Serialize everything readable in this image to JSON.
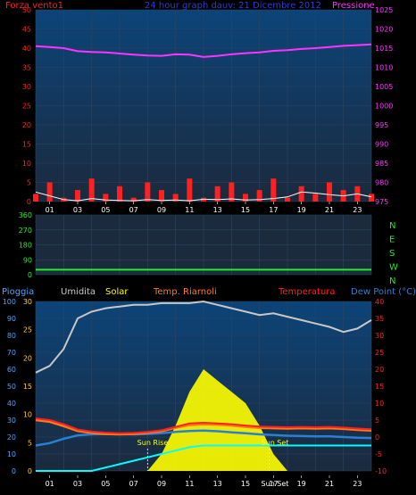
{
  "colors": {
    "background": "#000000",
    "panel_top": "#0c4479",
    "panel_bottom": "#1b2a3d",
    "grid": "#2f4560",
    "wind": "#ff2020",
    "gust_white": "#ffffff",
    "pressure": "#ff33ff",
    "direction": "#22ee22",
    "title_blue": "#2e3ad6",
    "humidity": "#c8c8c8",
    "solar": "#ffff00",
    "feels": "#ff7a1a",
    "temperature": "#ff2020",
    "dew": "#2a7fd6",
    "rain": "#00ffff",
    "left_axis": "#4aa3ff",
    "orange_axis": "#ffcc33",
    "right_red_axis": "#ff2020"
  },
  "top": {
    "left_title": "Forza vento1",
    "center_title": "24 hour graph dauv: 21 Dicembre 2012",
    "right_title": "Pressione",
    "left_ticks": [
      "0",
      "5",
      "10",
      "15",
      "20",
      "25",
      "30",
      "35",
      "40",
      "45",
      "50"
    ],
    "right_ticks": [
      "975",
      "980",
      "985",
      "990",
      "995",
      "1000",
      "1005",
      "1010",
      "1015",
      "1020",
      "1025"
    ]
  },
  "middle": {
    "left_ticks": [
      "0",
      "90",
      "180",
      "270",
      "360"
    ],
    "compass": [
      "N",
      "W",
      "S",
      "E",
      "N"
    ]
  },
  "bottom": {
    "labels": [
      "Pioggia",
      "Umidita",
      "Solar",
      "Temp. Riarnoli",
      "Temperatura",
      "Dew Point (°C)"
    ],
    "rain_ticks": [
      "0",
      "10",
      "20",
      "30",
      "40",
      "50",
      "60",
      "70",
      "80",
      "90",
      "100"
    ],
    "orange_ticks": [
      "0",
      "5",
      "10",
      "15",
      "20",
      "25",
      "30"
    ],
    "temp_ticks": [
      "-10",
      "-5",
      "0",
      "5",
      "10",
      "15",
      "20",
      "25",
      "30",
      "35",
      "40"
    ],
    "sun_rise": "Sun Rise",
    "sun_set": "Sun Set"
  },
  "x_ticks": [
    "01",
    "03",
    "05",
    "07",
    "09",
    "11",
    "13",
    "15",
    "17",
    "19",
    "21",
    "23"
  ],
  "chart_data": {
    "type": "line",
    "x_unit": "hour",
    "hours": [
      0,
      1,
      2,
      3,
      4,
      5,
      6,
      7,
      8,
      9,
      10,
      11,
      12,
      13,
      14,
      15,
      16,
      17,
      18,
      19,
      20,
      21,
      22,
      23,
      24
    ],
    "pressure": [
      1015.5,
      1015.3,
      1015.0,
      1014.2,
      1014.0,
      1013.9,
      1013.6,
      1013.3,
      1013.1,
      1013.0,
      1013.4,
      1013.3,
      1012.7,
      1013.0,
      1013.4,
      1013.7,
      1013.9,
      1014.3,
      1014.5,
      1014.8,
      1015.0,
      1015.3,
      1015.6,
      1015.8,
      1016.0
    ],
    "wind_speed": [
      2,
      5,
      1,
      3,
      6,
      2,
      4,
      1,
      5,
      3,
      2,
      6,
      1,
      4,
      5,
      2,
      3,
      6,
      1,
      4,
      2,
      5,
      3,
      4,
      2
    ],
    "wind_gust": [
      2.5,
      1.5,
      0.5,
      0.2,
      0.8,
      0.4,
      0.3,
      0.2,
      0.5,
      0.3,
      0.4,
      0.2,
      0.6,
      0.5,
      0.7,
      0.4,
      0.5,
      0.8,
      1.2,
      2.5,
      2.2,
      1.8,
      1.5,
      2.0,
      1.2
    ],
    "wind_direction": [
      30,
      30,
      30,
      30,
      30,
      30,
      30,
      30,
      30,
      30,
      30,
      30,
      30,
      30,
      30,
      30,
      30,
      30,
      30,
      30,
      30,
      30,
      30,
      30,
      30
    ],
    "humidity": [
      58,
      62,
      72,
      90,
      94,
      96,
      97,
      98,
      98,
      99,
      99,
      99,
      100,
      98,
      96,
      94,
      92,
      93,
      91,
      89,
      87,
      85,
      82,
      84,
      89
    ],
    "temperature": [
      5.5,
      5.0,
      3.8,
      2.2,
      1.6,
      1.3,
      1.1,
      1.2,
      1.5,
      2.0,
      3.0,
      4.0,
      4.2,
      4.0,
      3.8,
      3.4,
      3.1,
      3.0,
      2.9,
      3.0,
      2.9,
      3.0,
      2.8,
      2.5,
      2.3
    ],
    "feels_like": [
      5.0,
      4.5,
      3.2,
      1.8,
      1.2,
      0.9,
      0.8,
      0.9,
      1.2,
      1.7,
      2.7,
      3.5,
      3.8,
      3.6,
      3.4,
      3.0,
      2.7,
      2.6,
      2.5,
      2.6,
      2.5,
      2.6,
      2.4,
      2.1,
      1.9
    ],
    "dew_point": [
      -2.5,
      -1.8,
      -0.5,
      0.5,
      0.8,
      0.9,
      0.9,
      0.8,
      0.9,
      1.1,
      1.5,
      1.8,
      1.9,
      1.7,
      1.4,
      1.1,
      0.8,
      0.6,
      0.4,
      0.3,
      0.2,
      0.2,
      0.0,
      -0.2,
      -0.3
    ],
    "solar": [
      0,
      0,
      0,
      0,
      0,
      0,
      0,
      0,
      0,
      3,
      8,
      14,
      18,
      16,
      14,
      12,
      8,
      3,
      0,
      0,
      0,
      0,
      0,
      0,
      0
    ],
    "rain_total": [
      0,
      0,
      0,
      0,
      0,
      2,
      4,
      6,
      8,
      10,
      12,
      14,
      15,
      15,
      15,
      15,
      15,
      15,
      15,
      15,
      15,
      15,
      15,
      15,
      15
    ],
    "sunrise_hour": 8.0,
    "sunset_hour": 16.7
  }
}
